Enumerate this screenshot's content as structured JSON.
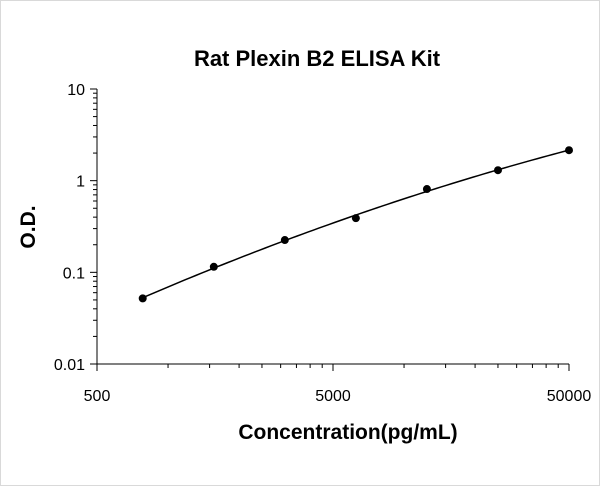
{
  "chart_data": {
    "type": "scatter",
    "title": "Rat Plexin B2 ELISA Kit",
    "xlabel": "Concentration(pg/mL)",
    "ylabel": "O.D.",
    "x_scale": "log",
    "y_scale": "log",
    "xlim": [
      500,
      50000
    ],
    "ylim": [
      0.01,
      10
    ],
    "x_tick_labels": [
      "500",
      "5000",
      "50000"
    ],
    "y_tick_labels": [
      "10",
      "1",
      "0.1",
      "0.01"
    ],
    "grid": false,
    "series": [
      {
        "x": [
          781,
          1563,
          3125,
          6250,
          12500,
          25000,
          50000
        ],
        "y": [
          0.052,
          0.115,
          0.225,
          0.39,
          0.81,
          1.3,
          2.15
        ],
        "fit_curve": true
      }
    ]
  }
}
